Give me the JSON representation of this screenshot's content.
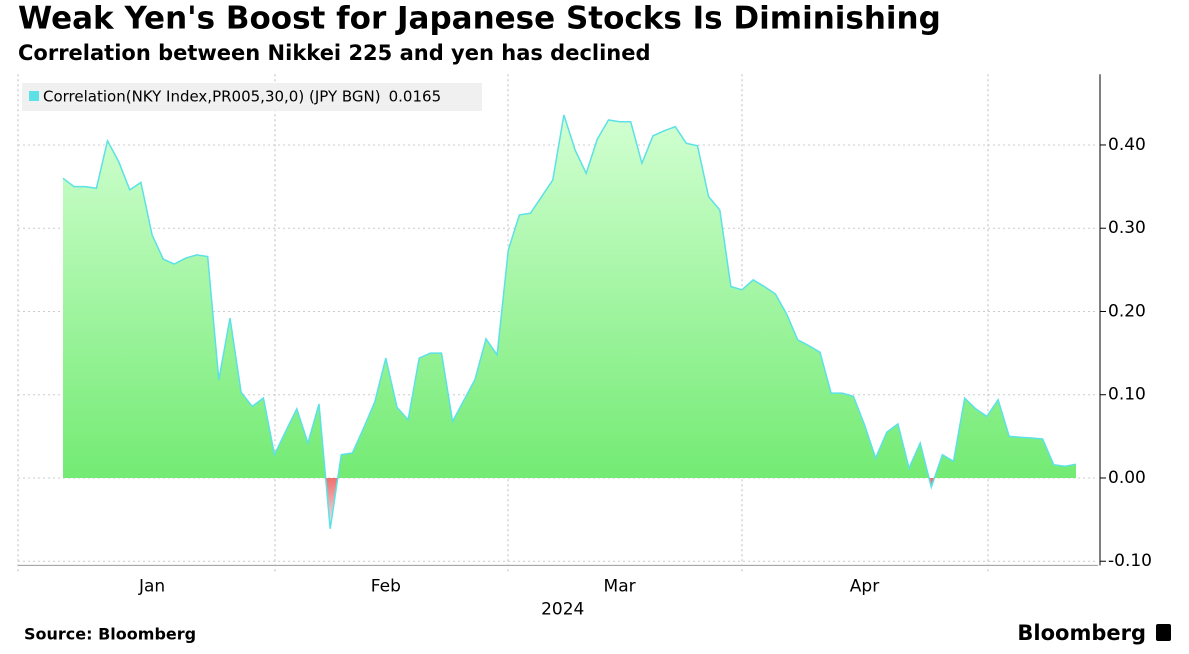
{
  "chart_data": {
    "type": "area",
    "title": "Weak Yen's Boost for Japanese Stocks Is Diminishing",
    "subtitle": "Correlation between Nikkei 225 and yen has declined",
    "source": "Source: Bloomberg",
    "brand": "Bloomberg",
    "x_label": "2024",
    "categories": [
      null,
      null,
      null,
      null,
      null,
      null,
      null,
      null,
      "Jan",
      null,
      null,
      null,
      null,
      null,
      null,
      null,
      null,
      null,
      null,
      null,
      null,
      null,
      null,
      null,
      null,
      null,
      null,
      null,
      null,
      "Feb",
      null,
      null,
      null,
      null,
      null,
      null,
      null,
      null,
      null,
      null,
      null,
      null,
      null,
      null,
      null,
      null,
      null,
      null,
      null,
      null,
      "Mar",
      null,
      null,
      null,
      null,
      null,
      null,
      null,
      null,
      null,
      null,
      null,
      null,
      null,
      null,
      null,
      null,
      null,
      null,
      null,
      null,
      null,
      "Apr",
      null,
      null,
      null,
      null,
      null,
      null,
      null,
      null,
      null,
      null,
      null,
      null,
      null,
      null,
      null,
      null,
      null,
      null,
      null
    ],
    "series": [
      {
        "name": "Correlation(NKY Index,PR005,30,0) (JPY BGN)",
        "color": "#5ce1e6",
        "values": [
          0.36,
          0.35,
          0.35,
          0.348,
          0.405,
          0.38,
          0.346,
          0.355,
          0.292,
          0.263,
          0.257,
          0.264,
          0.268,
          0.266,
          0.118,
          0.192,
          0.103,
          0.086,
          0.096,
          0.028,
          0.056,
          0.083,
          0.042,
          0.089,
          -0.061,
          0.028,
          0.03,
          0.06,
          0.091,
          0.144,
          0.085,
          0.07,
          0.144,
          0.15,
          0.15,
          0.068,
          0.093,
          0.118,
          0.167,
          0.148,
          0.274,
          0.316,
          0.318,
          0.338,
          0.358,
          0.436,
          0.394,
          0.366,
          0.407,
          0.43,
          0.428,
          0.428,
          0.378,
          0.411,
          0.417,
          0.422,
          0.402,
          0.399,
          0.338,
          0.322,
          0.23,
          0.226,
          0.238,
          0.23,
          0.221,
          0.197,
          0.166,
          0.159,
          0.151,
          0.102,
          0.102,
          0.098,
          0.064,
          0.024,
          0.055,
          0.065,
          0.012,
          0.042,
          -0.011,
          0.028,
          0.02,
          0.096,
          0.083,
          0.074,
          0.094,
          0.05,
          0.049,
          0.048,
          0.047,
          0.016,
          0.014,
          0.0165
        ]
      }
    ],
    "ylim": [
      -0.105,
      0.485
    ],
    "yticks": [
      {
        "value": -0.1,
        "label": "-0.10"
      },
      {
        "value": 0,
        "label": "0.00"
      },
      {
        "value": 0.1,
        "label": "0.10"
      },
      {
        "value": 0.2,
        "label": "0.20"
      },
      {
        "value": 0.3,
        "label": "0.30"
      },
      {
        "value": 0.4,
        "label": "0.40"
      }
    ],
    "grid": true,
    "axis_side": "right"
  }
}
